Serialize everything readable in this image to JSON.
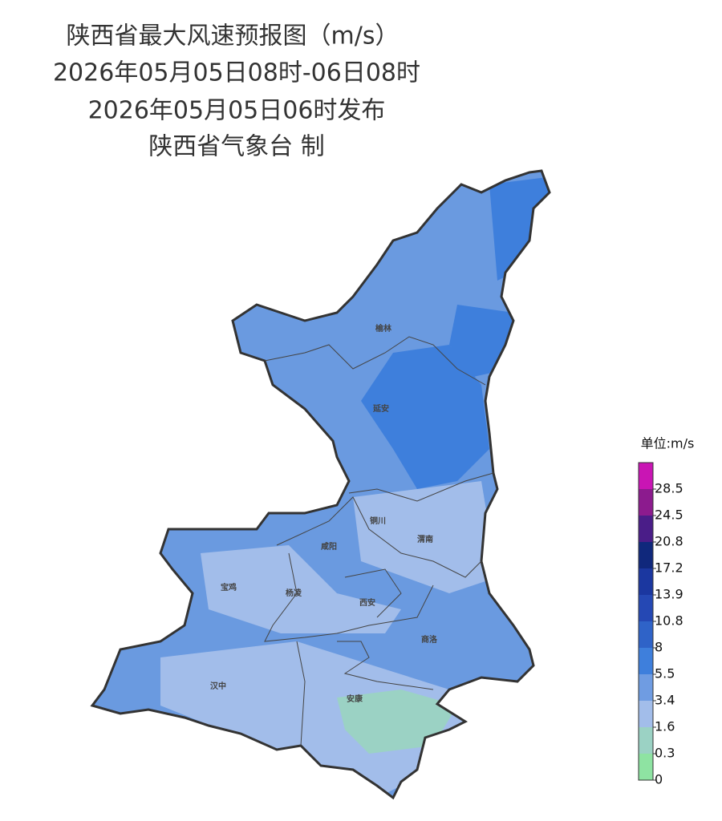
{
  "header": {
    "title": "陕西省最大风速预报图（m/s）",
    "period": "2026年05月05日08时-06日08时",
    "issued": "2026年05月05日06时发布",
    "issuer": "陕西省气象台 制"
  },
  "cities": [
    {
      "label": "榆林"
    },
    {
      "label": "延安"
    },
    {
      "label": "铜川"
    },
    {
      "label": "渭南"
    },
    {
      "label": "咸阳"
    },
    {
      "label": "宝鸡"
    },
    {
      "label": "杨凌"
    },
    {
      "label": "西安"
    },
    {
      "label": "商洛"
    },
    {
      "label": "汉中"
    },
    {
      "label": "安康"
    }
  ],
  "legend": {
    "title": "单位:m/s",
    "ticks": [
      0,
      0.3,
      1.6,
      3.4,
      5.5,
      8,
      10.8,
      13.9,
      17.2,
      20.8,
      24.5,
      28.5
    ],
    "colors": [
      "#8ee3a2",
      "#9bd2c4",
      "#a2bdea",
      "#6f9ce2",
      "#3e7fdc",
      "#2f63c8",
      "#2548b4",
      "#1b37a0",
      "#10287c",
      "#4a1d88",
      "#8c1b8e",
      "#c915b4"
    ]
  }
}
